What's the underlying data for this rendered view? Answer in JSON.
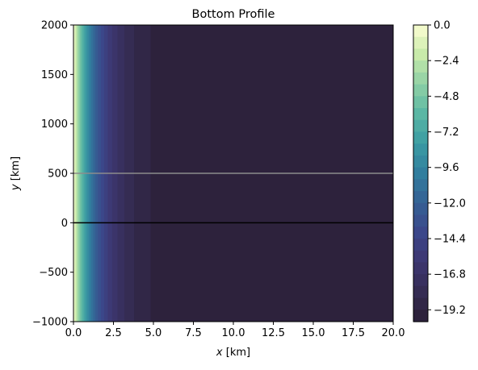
{
  "chart_data": {
    "type": "heatmap",
    "title": "Bottom Profile",
    "xlabel": {
      "var": "x",
      "unit": " [km]"
    },
    "ylabel": {
      "var": "y",
      "unit": " [km]"
    },
    "xlim": [
      0,
      20
    ],
    "ylim": [
      -1000,
      2000
    ],
    "xticks": [
      "0.0",
      "2.5",
      "5.0",
      "7.5",
      "10.0",
      "12.5",
      "15.0",
      "17.5",
      "20.0"
    ],
    "xtick_values": [
      0,
      2.5,
      5,
      7.5,
      10,
      12.5,
      15,
      17.5,
      20
    ],
    "yticks": [
      "−1000",
      "−500",
      "0",
      "500",
      "1000",
      "1500",
      "2000"
    ],
    "ytick_values": [
      -1000,
      -500,
      0,
      500,
      1000,
      1500,
      2000
    ],
    "colorbar": {
      "min": -20,
      "max": 0,
      "ticks": [
        "0.0",
        "−2.4",
        "−4.8",
        "−7.2",
        "−9.6",
        "−12.0",
        "−14.4",
        "−16.8",
        "−19.2"
      ],
      "tick_values": [
        0,
        -2.4,
        -4.8,
        -7.2,
        -9.6,
        -12.0,
        -14.4,
        -16.8,
        -19.2
      ],
      "colormap": [
        "#fdfed3",
        "#c8eaaa",
        "#8ed0a5",
        "#5bb7a4",
        "#3b9ba3",
        "#317e9e",
        "#356094",
        "#3b478a",
        "#3d3670",
        "#352c53",
        "#2b1f36"
      ]
    },
    "bottom_profile": {
      "model": "z = -20 * (1 - exp(-x / 1.5))",
      "x_km": [
        0,
        0.5,
        1,
        1.5,
        2,
        2.5,
        3,
        3.5,
        4,
        5,
        6.5,
        20
      ],
      "depth": [
        0,
        -5.7,
        -9.7,
        -12.6,
        -14.7,
        -16.2,
        -17.3,
        -18.1,
        -18.6,
        -19.3,
        -19.7,
        -20.0
      ]
    },
    "lines": [
      {
        "y": 500,
        "color": "#8c8c8c"
      },
      {
        "y": 0,
        "color": "#000000"
      }
    ]
  }
}
